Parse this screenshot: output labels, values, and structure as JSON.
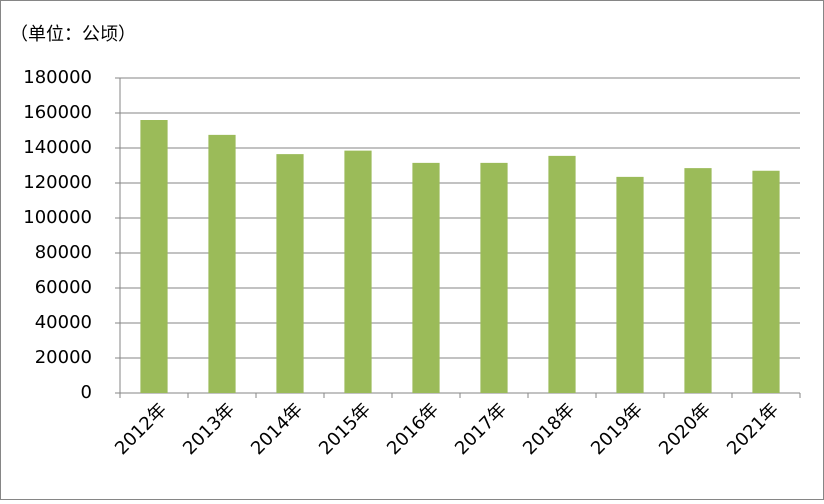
{
  "chart_data": {
    "type": "bar",
    "subtitle": "（单位：公顷）",
    "categories": [
      "2012年",
      "2013年",
      "2014年",
      "2015年",
      "2016年",
      "2017年",
      "2018年",
      "2019年",
      "2020年",
      "2021年"
    ],
    "values": [
      156000,
      147500,
      136500,
      138500,
      131500,
      131500,
      135500,
      123500,
      128500,
      127000
    ],
    "color": "#9bbb59",
    "ylim": [
      0,
      180000
    ],
    "yticks": [
      0,
      20000,
      40000,
      60000,
      80000,
      100000,
      120000,
      140000,
      160000,
      180000
    ],
    "grid": true
  }
}
